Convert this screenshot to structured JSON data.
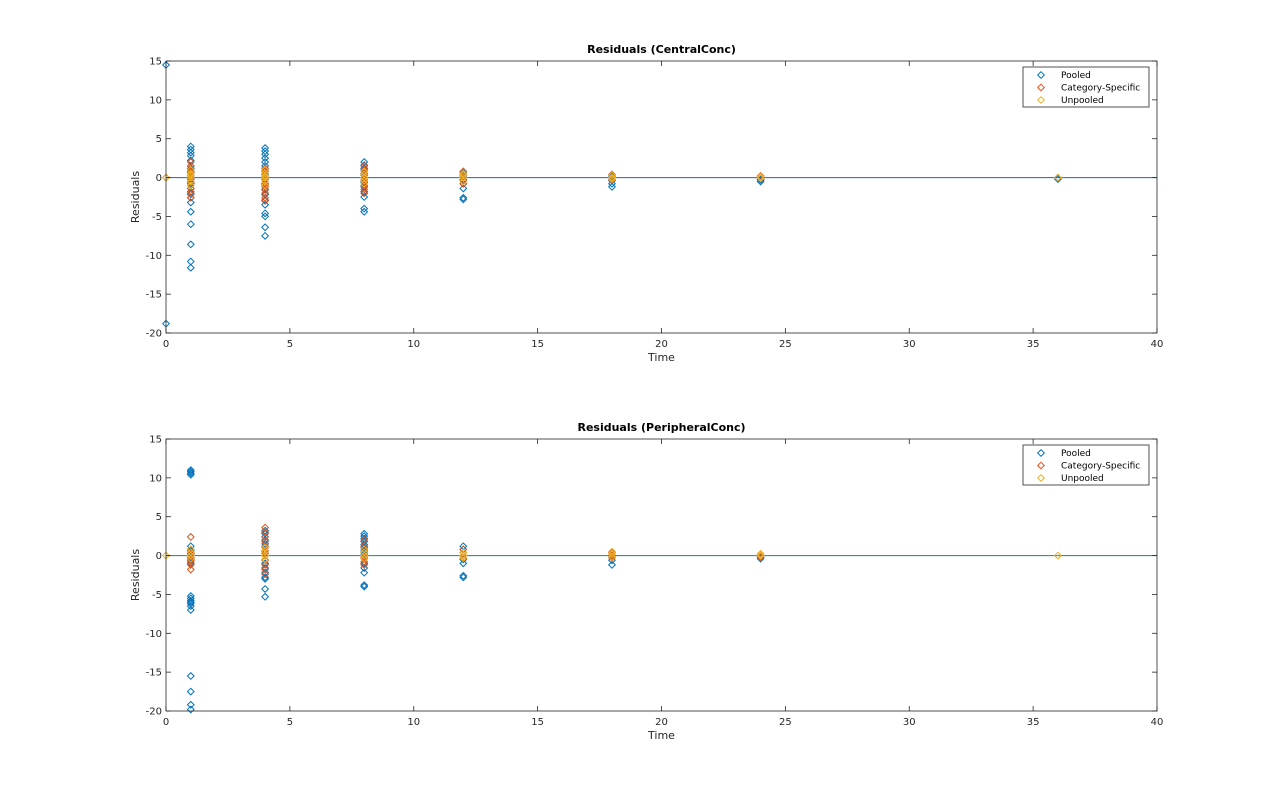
{
  "figure": {
    "background": "#ffffff"
  },
  "colors": {
    "pooled": "#0072BD",
    "category": "#D95319",
    "unpooled": "#EDB120"
  },
  "chart_data": [
    {
      "type": "scatter",
      "title": "Residuals (CentralConc)",
      "xlabel": "Time",
      "ylabel": "Residuals",
      "xlim": [
        0,
        40
      ],
      "ylim": [
        -20,
        15
      ],
      "xticks": [
        0,
        5,
        10,
        15,
        20,
        25,
        30,
        35,
        40
      ],
      "yticks": [
        -20,
        -15,
        -10,
        -5,
        0,
        5,
        10,
        15
      ],
      "legend": {
        "position": "top-right",
        "entries": [
          "Pooled",
          "Category-Specific",
          "Unpooled"
        ]
      },
      "reference_line": {
        "y": 0,
        "color": "#0072BD"
      },
      "series": [
        {
          "name": "Pooled",
          "marker": "diamond",
          "color": "#0072BD",
          "x": [
            0,
            0,
            1,
            1,
            1,
            1,
            1,
            1,
            1,
            1,
            1,
            1,
            1,
            1,
            1,
            1,
            1,
            1,
            1,
            1,
            1,
            1,
            1,
            1,
            4,
            4,
            4,
            4,
            4,
            4,
            4,
            4,
            4,
            4,
            4,
            4,
            4,
            4,
            4,
            4,
            4,
            4,
            4,
            4,
            8,
            8,
            8,
            8,
            8,
            8,
            8,
            8,
            8,
            8,
            8,
            8,
            8,
            8,
            12,
            12,
            12,
            12,
            12,
            12,
            12,
            12,
            18,
            18,
            18,
            18,
            18,
            24,
            24,
            24,
            36
          ],
          "y": [
            14.5,
            -18.8,
            4.0,
            3.6,
            3.2,
            2.8,
            2.2,
            1.5,
            1.0,
            0.5,
            -0.2,
            -0.8,
            -1.4,
            -2.0,
            -2.6,
            -3.2,
            -4.4,
            -6.0,
            -8.6,
            -10.8,
            -11.6,
            0.0,
            -0.5,
            1.2,
            3.8,
            3.4,
            3.0,
            2.5,
            2.0,
            1.5,
            1.0,
            0.4,
            -0.2,
            -0.8,
            -1.5,
            -2.2,
            -2.9,
            -3.5,
            -4.6,
            -5.0,
            -6.4,
            -7.5,
            0.2,
            -1.0,
            2.0,
            1.6,
            1.0,
            0.5,
            0.0,
            -0.6,
            -1.2,
            -2.0,
            -2.5,
            -4.0,
            -4.4,
            1.2,
            -1.8,
            0.3,
            0.6,
            0.2,
            -0.3,
            -0.8,
            -1.4,
            -2.6,
            -2.8,
            0.0,
            0.2,
            -0.4,
            -0.8,
            -1.2,
            0.0,
            -0.3,
            -0.5,
            -0.2,
            -0.2
          ]
        },
        {
          "name": "Category-Specific",
          "marker": "diamond",
          "color": "#D95319",
          "x": [
            0,
            1,
            1,
            1,
            1,
            1,
            1,
            1,
            1,
            1,
            1,
            1,
            1,
            1,
            4,
            4,
            4,
            4,
            4,
            4,
            4,
            4,
            4,
            4,
            4,
            4,
            4,
            8,
            8,
            8,
            8,
            8,
            8,
            8,
            8,
            8,
            8,
            12,
            12,
            12,
            12,
            12,
            18,
            18,
            18,
            24,
            24,
            36
          ],
          "y": [
            0.0,
            2.0,
            1.5,
            1.0,
            0.6,
            0.2,
            -0.2,
            -0.6,
            -1.0,
            -1.4,
            -1.8,
            -2.2,
            -2.6,
            0.8,
            1.2,
            0.8,
            0.5,
            0.2,
            -0.2,
            -0.5,
            -0.8,
            -1.2,
            -1.6,
            -2.0,
            -2.6,
            -3.0,
            -0.9,
            1.5,
            1.0,
            0.5,
            0.0,
            -0.5,
            -1.0,
            -1.5,
            -2.0,
            0.8,
            -0.3,
            0.8,
            0.4,
            0.0,
            -0.4,
            -0.8,
            0.4,
            0.0,
            -0.3,
            0.2,
            -0.1,
            0.0
          ]
        },
        {
          "name": "Unpooled",
          "marker": "diamond",
          "color": "#EDB120",
          "x": [
            0,
            1,
            1,
            1,
            1,
            1,
            1,
            4,
            4,
            4,
            4,
            4,
            4,
            8,
            8,
            8,
            8,
            8,
            12,
            12,
            12,
            12,
            18,
            18,
            18,
            24,
            24,
            36
          ],
          "y": [
            0.0,
            0.5,
            0.0,
            -0.5,
            1.0,
            -1.0,
            0.3,
            0.5,
            0.0,
            -0.5,
            1.0,
            -1.0,
            0.2,
            0.4,
            0.0,
            -0.4,
            0.8,
            -0.8,
            0.5,
            0.0,
            -0.5,
            0.3,
            0.3,
            0.0,
            -0.2,
            0.1,
            -0.1,
            0.0
          ]
        }
      ]
    },
    {
      "type": "scatter",
      "title": "Residuals (PeripheralConc)",
      "xlabel": "Time",
      "ylabel": "Residuals",
      "xlim": [
        0,
        40
      ],
      "ylim": [
        -20,
        15
      ],
      "xticks": [
        0,
        5,
        10,
        15,
        20,
        25,
        30,
        35,
        40
      ],
      "yticks": [
        -20,
        -15,
        -10,
        -5,
        0,
        5,
        10,
        15
      ],
      "legend": {
        "position": "top-right",
        "entries": [
          "Pooled",
          "Category-Specific",
          "Unpooled"
        ]
      },
      "reference_line": {
        "y": 0,
        "color": "#1a8a6a"
      },
      "series": [
        {
          "name": "Pooled",
          "marker": "diamond",
          "color": "#0072BD",
          "x": [
            1,
            1,
            1,
            1,
            1,
            1,
            1,
            1,
            1,
            1,
            1,
            1,
            1,
            1,
            1,
            1,
            1,
            1,
            1,
            1,
            1,
            1,
            4,
            4,
            4,
            4,
            4,
            4,
            4,
            4,
            4,
            4,
            4,
            4,
            4,
            4,
            4,
            4,
            8,
            8,
            8,
            8,
            8,
            8,
            8,
            8,
            8,
            8,
            8,
            8,
            8,
            8,
            12,
            12,
            12,
            12,
            12,
            12,
            12,
            12,
            18,
            18,
            18,
            24,
            24
          ],
          "y": [
            11.0,
            10.8,
            10.6,
            10.4,
            1.2,
            0.6,
            0.0,
            -0.5,
            -1.0,
            -5.2,
            -5.5,
            -5.8,
            -6.0,
            -6.2,
            -6.5,
            -7.0,
            -15.5,
            -17.5,
            -19.2,
            -19.8,
            0.3,
            -0.3,
            3.2,
            2.8,
            2.4,
            2.0,
            1.5,
            1.0,
            0.5,
            0.0,
            -0.5,
            -1.0,
            -1.6,
            -2.2,
            -2.8,
            -3.0,
            -4.3,
            -5.3,
            2.8,
            2.5,
            2.2,
            1.8,
            1.4,
            1.0,
            0.6,
            0.2,
            -0.4,
            -1.0,
            -1.6,
            -2.2,
            -3.8,
            -4.0,
            1.2,
            0.8,
            0.4,
            0.0,
            -0.5,
            -1.0,
            -2.6,
            -2.8,
            0.0,
            -0.6,
            -1.2,
            -0.2,
            -0.4
          ]
        },
        {
          "name": "Category-Specific",
          "marker": "diamond",
          "color": "#D95319",
          "x": [
            1,
            1,
            1,
            1,
            1,
            1,
            1,
            1,
            1,
            1,
            4,
            4,
            4,
            4,
            4,
            4,
            4,
            4,
            4,
            4,
            4,
            4,
            8,
            8,
            8,
            8,
            8,
            8,
            8,
            8,
            8,
            12,
            12,
            12,
            12,
            18,
            18,
            18,
            24,
            24
          ],
          "y": [
            2.4,
            0.8,
            0.4,
            0.0,
            -0.4,
            -0.8,
            -1.2,
            -1.8,
            0.2,
            -0.6,
            3.6,
            3.0,
            2.4,
            1.8,
            1.2,
            0.6,
            0.0,
            -0.6,
            -1.2,
            -1.8,
            -2.4,
            0.3,
            1.2,
            0.8,
            0.4,
            0.0,
            -0.4,
            -0.8,
            -1.2,
            2.0,
            -0.2,
            0.8,
            0.4,
            0.0,
            -0.4,
            0.4,
            0.0,
            -0.3,
            0.2,
            -0.2
          ]
        },
        {
          "name": "Unpooled",
          "marker": "diamond",
          "color": "#EDB120",
          "x": [
            0,
            1,
            1,
            1,
            1,
            4,
            4,
            4,
            4,
            8,
            8,
            8,
            8,
            12,
            12,
            12,
            18,
            18,
            18,
            24,
            24,
            36
          ],
          "y": [
            0.0,
            0.4,
            0.0,
            -0.4,
            0.8,
            0.5,
            0.0,
            -0.5,
            1.0,
            0.4,
            0.0,
            -0.4,
            0.8,
            0.4,
            0.0,
            -0.3,
            0.5,
            0.2,
            -0.2,
            0.2,
            0.0,
            0.0
          ]
        }
      ]
    }
  ]
}
